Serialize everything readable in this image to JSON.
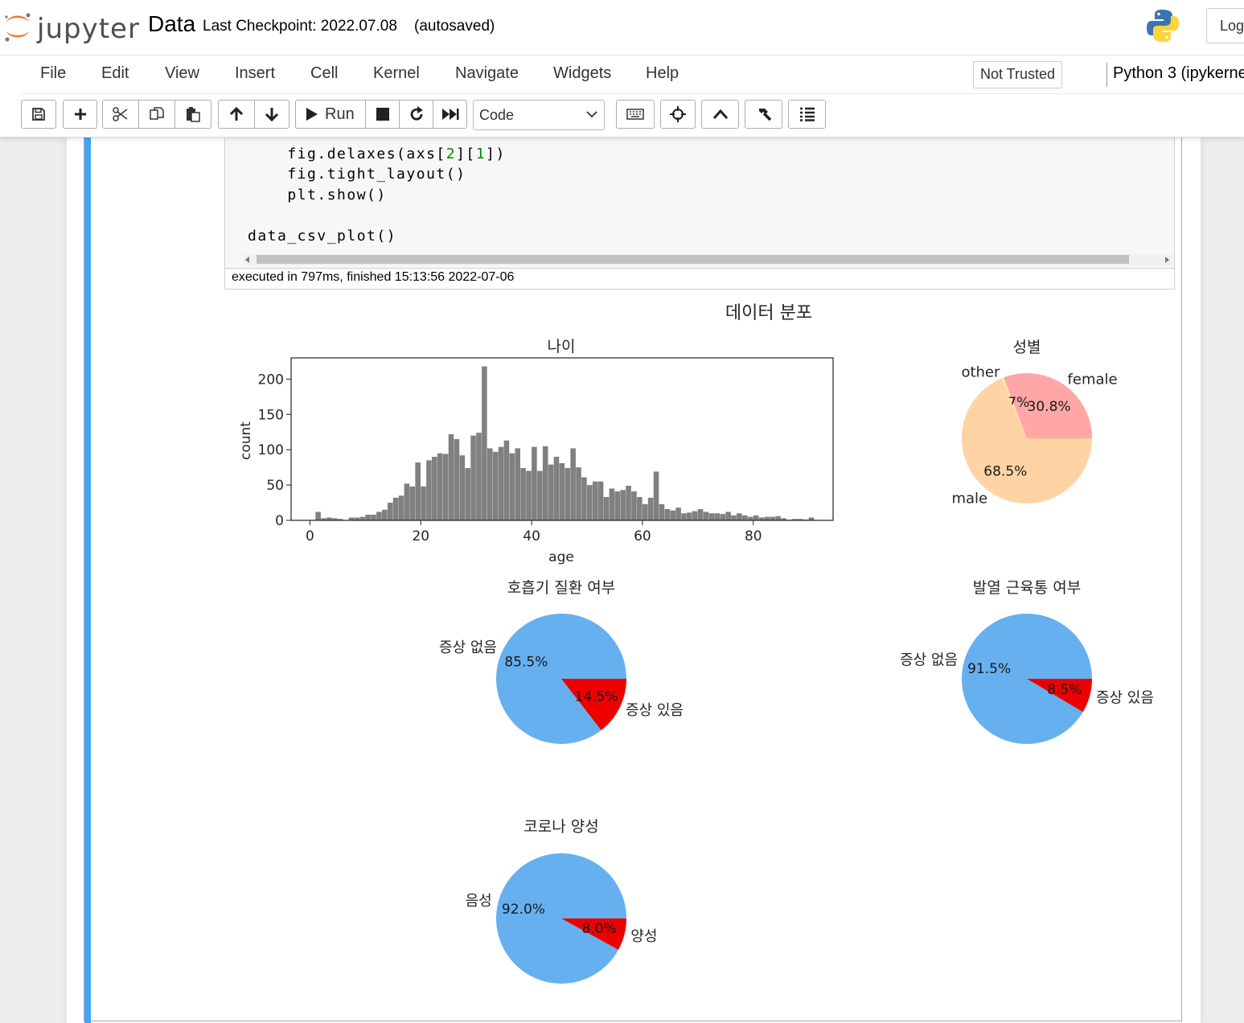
{
  "header": {
    "logo_text": "jupyter",
    "notebook_name": "Data",
    "checkpoint": "Last Checkpoint: 2022.07.08",
    "autosaved": "(autosaved)",
    "logout_label": "Log"
  },
  "menubar": {
    "items": [
      "File",
      "Edit",
      "View",
      "Insert",
      "Cell",
      "Kernel",
      "Navigate",
      "Widgets",
      "Help"
    ],
    "not_trusted": "Not Trusted",
    "kernel": "Python 3 (ipykerne"
  },
  "toolbar": {
    "run_label": "Run",
    "cell_type": "Code",
    "icons": [
      "save-icon",
      "plus-icon",
      "scissors-icon",
      "copy-icon",
      "paste-icon",
      "arrow-up-icon",
      "arrow-down-icon",
      "play-icon",
      "stop-icon",
      "restart-icon",
      "fast-forward-icon",
      "chevron-down-icon",
      "keyboard-icon",
      "crosshair-icon",
      "chevron-up-icon",
      "hammer-icon",
      "list-icon"
    ]
  },
  "cell": {
    "code": {
      "line1": {
        "pre": "    fig.delaxes(axs[",
        "n1": "2",
        "mid": "][",
        "n2": "1",
        "post": "])"
      },
      "line2": "    fig.tight_layout()",
      "line3": "    plt.show()",
      "line4": "data_csv_plot()"
    },
    "execution_info": "executed in 797ms, finished 15:13:56 2022-07-06"
  },
  "figure": {
    "suptitle": "데이터 분포"
  },
  "chart_data": [
    {
      "type": "bar",
      "subtype": "histogram",
      "title": "나이",
      "xlabel": "age",
      "ylabel": "count",
      "xlim": [
        -3.4,
        94.4
      ],
      "ylim": [
        0,
        230
      ],
      "xticks": [
        "0",
        "20",
        "40",
        "60",
        "80"
      ],
      "yticks": [
        "0",
        "50",
        "100",
        "150",
        "200"
      ],
      "bin_width": 1,
      "bin_start": 1,
      "color": "#808080",
      "values": [
        12,
        3,
        4,
        3,
        2,
        0,
        4,
        4,
        5,
        8,
        8,
        12,
        15,
        25,
        32,
        35,
        52,
        48,
        82,
        48,
        85,
        90,
        95,
        94,
        122,
        115,
        92,
        74,
        120,
        124,
        218,
        102,
        97,
        104,
        113,
        95,
        102,
        74,
        70,
        104,
        70,
        105,
        79,
        90,
        81,
        74,
        102,
        75,
        61,
        50,
        55,
        55,
        33,
        45,
        41,
        43,
        49,
        41,
        33,
        23,
        32,
        69,
        23,
        16,
        14,
        18,
        10,
        11,
        13,
        16,
        12,
        10,
        10,
        9,
        12,
        7,
        10,
        7,
        5,
        7,
        4,
        5,
        5,
        6,
        3,
        1,
        2,
        2,
        1,
        4
      ]
    },
    {
      "type": "pie",
      "title": "성별",
      "slices": [
        {
          "label": "female",
          "percent": "30.8%",
          "value": 30.8,
          "color": "#ffa6a6"
        },
        {
          "label": "other",
          "percent": "0.7%",
          "value": 0.7,
          "color": "#ffe4a8"
        },
        {
          "label": "male",
          "percent": "68.5%",
          "value": 68.5,
          "color": "#ffd3a3"
        }
      ]
    },
    {
      "type": "pie",
      "title": "호흡기 질환 여부",
      "slices": [
        {
          "label": "증상 없음",
          "percent": "85.5%",
          "value": 85.5,
          "color": "#66b0f0"
        },
        {
          "label": "증상 있음",
          "percent": "14.5%",
          "value": 14.5,
          "color": "#ee0000"
        }
      ]
    },
    {
      "type": "pie",
      "title": "발열 근육통 여부",
      "slices": [
        {
          "label": "증상 없음",
          "percent": "91.5%",
          "value": 91.5,
          "color": "#66b0f0"
        },
        {
          "label": "증상 있음",
          "percent": "8.5%",
          "value": 8.5,
          "color": "#ee0000"
        }
      ]
    },
    {
      "type": "pie",
      "title": "코로나 양성",
      "slices": [
        {
          "label": "음성",
          "percent": "92.0%",
          "value": 92.0,
          "color": "#66b0f0"
        },
        {
          "label": "양성",
          "percent": "8.0%",
          "value": 8.0,
          "color": "#ee0000"
        }
      ]
    }
  ]
}
